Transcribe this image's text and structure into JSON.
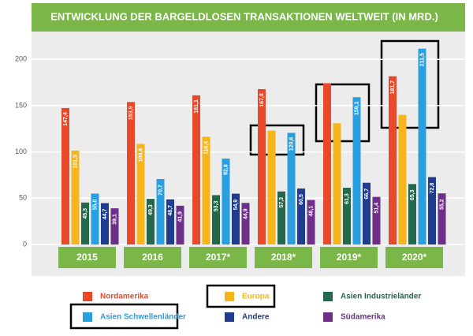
{
  "chart_data": {
    "type": "bar",
    "title": "ENTWICKLUNG DER BARGELDLOSEN TRANSAKTIONEN WELTWEIT (IN MRD.)",
    "categories": [
      "2015",
      "2016",
      "2017*",
      "2018*",
      "2019*",
      "2020*"
    ],
    "series": [
      {
        "name": "Nordamerika",
        "color": "#e8492a",
        "values": [
          147.4,
          153.9,
          161.1,
          167.8,
          174,
          181.7
        ],
        "value_labels": [
          "147,4",
          "153,9",
          "161,1",
          "167,8",
          null,
          "181,7"
        ]
      },
      {
        "name": "Europa",
        "color": "#f7b51d",
        "values": [
          101.5,
          108.6,
          116.4,
          123,
          131,
          140
        ],
        "value_labels": [
          "101,5",
          "108,6",
          "116,4",
          null,
          null,
          null
        ]
      },
      {
        "name": "Asien Industrieländer",
        "color": "#23684a",
        "values": [
          45.3,
          49.3,
          53.3,
          57.3,
          61.3,
          65.3
        ],
        "value_labels": [
          "45,3",
          "49,3",
          "53,3",
          "57,3",
          "61,3",
          "65,3"
        ]
      },
      {
        "name": "Asien Schwellenländer",
        "color": "#2a9fe0",
        "values": [
          55.0,
          70.7,
          92.8,
          120.6,
          159.1,
          211.5
        ],
        "value_labels": [
          "55,0",
          "70,7",
          "92,8",
          "120,6",
          "159,1",
          "211,5"
        ]
      },
      {
        "name": "Andere",
        "color": "#1f3c8f",
        "values": [
          44.7,
          48.7,
          54.9,
          60.5,
          66.7,
          72.8
        ],
        "value_labels": [
          "44,7",
          "48,7",
          "54,9",
          "60,5",
          "66,7",
          "72,8"
        ]
      },
      {
        "name": "Südamerika",
        "color": "#6d2f87",
        "values": [
          39.1,
          41.9,
          44.9,
          48.1,
          51.4,
          55.2
        ],
        "value_labels": [
          "39,1",
          "41,9",
          "44,9",
          "48,1",
          "51,4",
          "55,2"
        ]
      }
    ],
    "ylim": [
      0,
      230
    ],
    "yticks": [
      0,
      50,
      100,
      150,
      200
    ],
    "grid": true
  }
}
